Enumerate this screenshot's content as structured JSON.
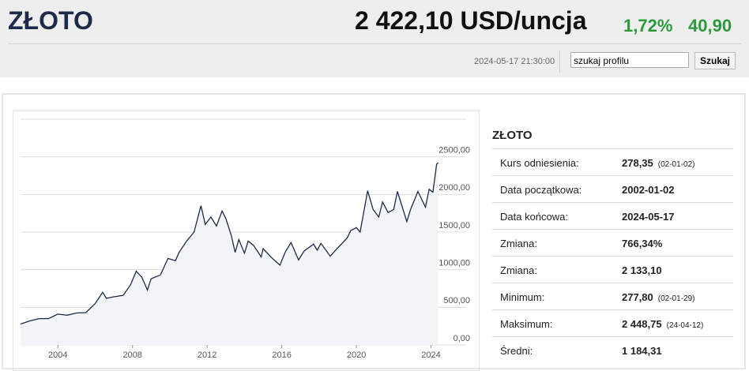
{
  "header": {
    "title": "ZŁOTO",
    "price": "2 422,10 USD/uncja",
    "change_pct": "1,72%",
    "change_abs": "40,90",
    "timestamp": "2024-05-17 21:30:00"
  },
  "search": {
    "placeholder": "szukaj profilu",
    "button": "Szukaj"
  },
  "chart_data": {
    "type": "line",
    "x": [
      2002.0,
      2002.5,
      2003.0,
      2003.5,
      2004.0,
      2004.5,
      2005.0,
      2005.5,
      2006.0,
      2006.4,
      2006.6,
      2007.0,
      2007.5,
      2007.9,
      2008.2,
      2008.5,
      2008.8,
      2009.0,
      2009.5,
      2009.9,
      2010.3,
      2010.5,
      2010.9,
      2011.3,
      2011.67,
      2011.9,
      2012.2,
      2012.5,
      2012.8,
      2013.0,
      2013.3,
      2013.5,
      2013.7,
      2014.0,
      2014.2,
      2014.5,
      2014.9,
      2015.0,
      2015.5,
      2015.9,
      2016.2,
      2016.5,
      2016.9,
      2017.2,
      2017.7,
      2017.9,
      2018.1,
      2018.6,
      2019.0,
      2019.5,
      2019.7,
      2020.0,
      2020.2,
      2020.6,
      2020.9,
      2021.2,
      2021.4,
      2021.7,
      2022.0,
      2022.2,
      2022.7,
      2022.9,
      2023.1,
      2023.3,
      2023.7,
      2023.9,
      2024.1,
      2024.3,
      2024.38
    ],
    "series": [
      {
        "color": "#1c2b4a",
        "values": [
          278,
          320,
          350,
          350,
          410,
          395,
          425,
          430,
          550,
          700,
          620,
          640,
          660,
          800,
          980,
          900,
          730,
          880,
          930,
          1150,
          1120,
          1230,
          1380,
          1500,
          1850,
          1600,
          1700,
          1580,
          1780,
          1680,
          1450,
          1230,
          1400,
          1220,
          1380,
          1320,
          1170,
          1280,
          1150,
          1060,
          1240,
          1360,
          1130,
          1250,
          1340,
          1260,
          1350,
          1180,
          1290,
          1420,
          1520,
          1560,
          1500,
          2050,
          1800,
          1700,
          1900,
          1760,
          1800,
          2040,
          1640,
          1800,
          1920,
          2040,
          1830,
          2070,
          2030,
          2400,
          2422
        ]
      }
    ],
    "xlim": [
      2002,
      2024.4
    ],
    "xticks": [
      2004,
      2008,
      2012,
      2016,
      2020,
      2024
    ],
    "ylim": [
      0,
      3000
    ],
    "yticks": [
      {
        "value": 0,
        "label": "0,00"
      },
      {
        "value": 500,
        "label": "500,00"
      },
      {
        "value": 1000,
        "label": "1000,00"
      },
      {
        "value": 1500,
        "label": "1500,00"
      },
      {
        "value": 2000,
        "label": "2000,00"
      },
      {
        "value": 2500,
        "label": "2500,00"
      }
    ],
    "grid": true
  },
  "table": {
    "title": "ZŁOTO",
    "rows": [
      {
        "label": "Kurs odniesienia:",
        "value": "278,35",
        "note": "(02-01-02)"
      },
      {
        "label": "Data początkowa:",
        "value": "2002-01-02"
      },
      {
        "label": "Data końcowa:",
        "value": "2024-05-17"
      },
      {
        "label": "Zmiana:",
        "value": "766,34%"
      },
      {
        "label": "Zmiana:",
        "value": "2 133,10"
      },
      {
        "label": "Minimum:",
        "value": "277,80",
        "note": "(02-01-29)"
      },
      {
        "label": "Maksimum:",
        "value": "2 448,75",
        "note": "(24-04-12)"
      },
      {
        "label": "Średni:",
        "value": "1 184,31"
      }
    ]
  }
}
